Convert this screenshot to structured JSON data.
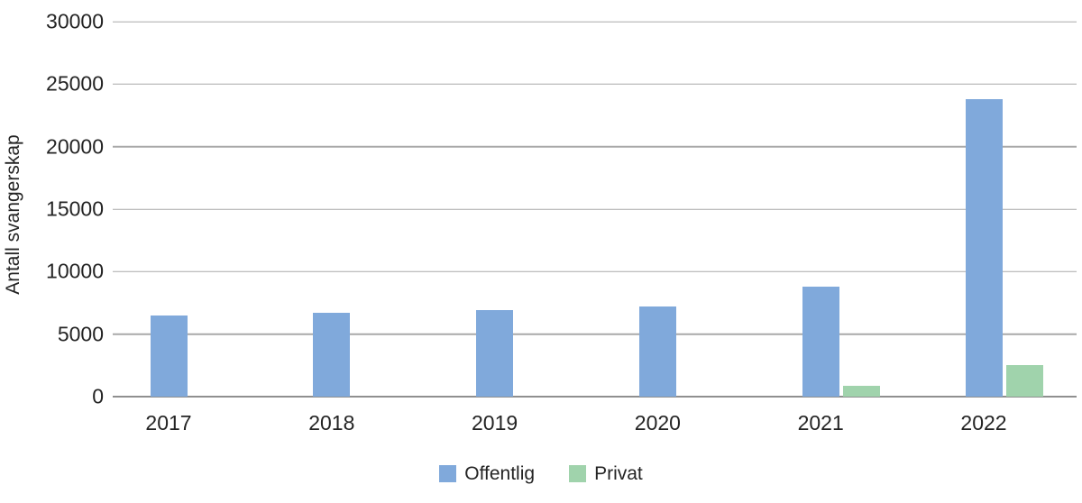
{
  "chart_data": {
    "type": "bar",
    "title": "",
    "ylabel": "Antall svangerskap",
    "xlabel": "",
    "categories": [
      "2017",
      "2018",
      "2019",
      "2020",
      "2021",
      "2022"
    ],
    "series": [
      {
        "name": "Offentlig",
        "color": "#80a9db",
        "values": [
          6500,
          6700,
          6900,
          7200,
          8800,
          23800
        ]
      },
      {
        "name": "Privat",
        "color": "#a0d3ac",
        "values": [
          0,
          0,
          0,
          0,
          900,
          2500
        ]
      }
    ],
    "ylim": [
      0,
      30000
    ],
    "yticks": [
      0,
      5000,
      10000,
      15000,
      20000,
      25000,
      30000
    ],
    "grid": "horizontal",
    "legend_position": "bottom"
  },
  "styles": {
    "gridline_color": "#a9a9a9",
    "zero_line_color": "#8f8f8f",
    "text_color": "#242424",
    "background": "#ffffff"
  }
}
